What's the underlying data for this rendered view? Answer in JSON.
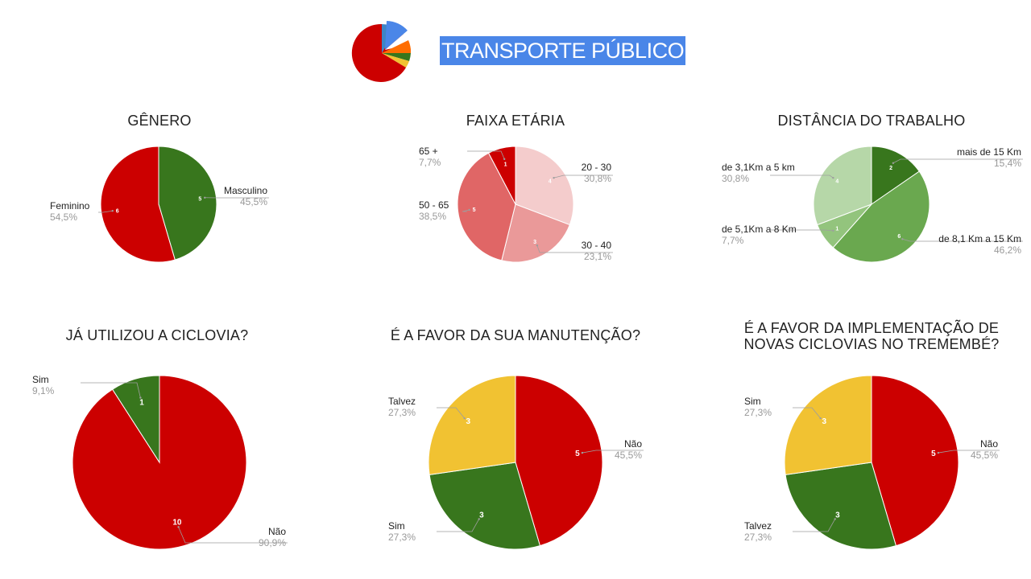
{
  "header": {
    "title": "TRANSPORTE PÚBLICO"
  },
  "colors": {
    "red": "#cc0000",
    "green": "#38761d",
    "yellow": "#f1c232",
    "label_gray": "#999999"
  },
  "chart_data": [
    {
      "type": "pie",
      "title": "GÊNERO",
      "slices": [
        {
          "label": "Masculino",
          "value": 5,
          "percent": "45,5%",
          "color": "#38761d"
        },
        {
          "label": "Feminino",
          "value": 6,
          "percent": "54,5%",
          "color": "#cc0000"
        }
      ]
    },
    {
      "type": "pie",
      "title": "FAIXA ETÁRIA",
      "slices": [
        {
          "label": "20 - 30",
          "value": 4,
          "percent": "30,8%",
          "color": "#f4cccc"
        },
        {
          "label": "30 - 40",
          "value": 3,
          "percent": "23,1%",
          "color": "#ea9999"
        },
        {
          "label": "50 - 65",
          "value": 5,
          "percent": "38,5%",
          "color": "#e06666"
        },
        {
          "label": "65 +",
          "value": 1,
          "percent": "7,7%",
          "color": "#cc0000"
        }
      ]
    },
    {
      "type": "pie",
      "title": "DISTÂNCIA DO TRABALHO",
      "slices": [
        {
          "label": "mais de 15 Km",
          "value": 2,
          "percent": "15,4%",
          "color": "#38761d"
        },
        {
          "label": "de 8,1 Km a 15 Km",
          "value": 6,
          "percent": "46,2%",
          "color": "#6aa84f"
        },
        {
          "label": "de 5,1Km a 8 Km",
          "value": 1,
          "percent": "7,7%",
          "color": "#93c47d"
        },
        {
          "label": "de 3,1Km a 5 km",
          "value": 4,
          "percent": "30,8%",
          "color": "#b6d7a8"
        }
      ]
    },
    {
      "type": "pie",
      "title": "JÁ UTILIZOU A CICLOVIA?",
      "slices": [
        {
          "label": "Não",
          "value": 10,
          "percent": "90,9%",
          "color": "#cc0000"
        },
        {
          "label": "Sim",
          "value": 1,
          "percent": "9,1%",
          "color": "#38761d"
        }
      ]
    },
    {
      "type": "pie",
      "title": "É A FAVOR DA SUA MANUTENÇÃO?",
      "slices": [
        {
          "label": "Não",
          "value": 5,
          "percent": "45,5%",
          "color": "#cc0000"
        },
        {
          "label": "Sim",
          "value": 3,
          "percent": "27,3%",
          "color": "#38761d"
        },
        {
          "label": "Talvez",
          "value": 3,
          "percent": "27,3%",
          "color": "#f1c232"
        }
      ]
    },
    {
      "type": "pie",
      "title": "É A FAVOR DA IMPLEMENTAÇÃO DE NOVAS CICLOVIAS NO TREMEMBÉ?",
      "slices": [
        {
          "label": "Não",
          "value": 5,
          "percent": "45,5%",
          "color": "#cc0000"
        },
        {
          "label": "Talvez",
          "value": 3,
          "percent": "27,3%",
          "color": "#38761d"
        },
        {
          "label": "Sim",
          "value": 3,
          "percent": "27,3%",
          "color": "#f1c232"
        }
      ]
    }
  ]
}
